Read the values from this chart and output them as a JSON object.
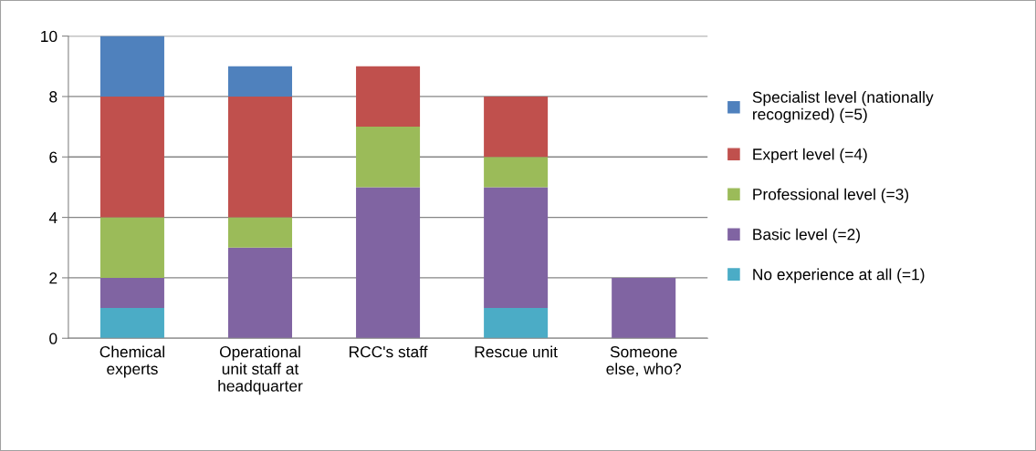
{
  "chart_data": {
    "type": "bar",
    "stacked": true,
    "categories": [
      "Chemical\nexperts",
      "Operational\nunit staff at\nheadquarter",
      "RCC's staff",
      "Rescue unit",
      "Someone\nelse, who?"
    ],
    "series": [
      {
        "name": "No experience at all (=1)",
        "color": "#4bacc6",
        "values": [
          1,
          0,
          0,
          1,
          0
        ]
      },
      {
        "name": "Basic level (=2)",
        "color": "#8064a2",
        "values": [
          1,
          3,
          5,
          4,
          2
        ]
      },
      {
        "name": "Professional level (=3)",
        "color": "#9bbb59",
        "values": [
          2,
          1,
          2,
          1,
          0
        ]
      },
      {
        "name": "Expert level (=4)",
        "color": "#c0504d",
        "values": [
          4,
          4,
          2,
          2,
          0
        ]
      },
      {
        "name": "Specialist level (nationally\nrecognized) (=5)",
        "color": "#4f81bd",
        "values": [
          2,
          1,
          0,
          0,
          0
        ]
      }
    ],
    "ylim": [
      0,
      10
    ],
    "yticks": [
      0,
      2,
      4,
      6,
      8,
      10
    ],
    "grid": "y",
    "legend": "right"
  }
}
